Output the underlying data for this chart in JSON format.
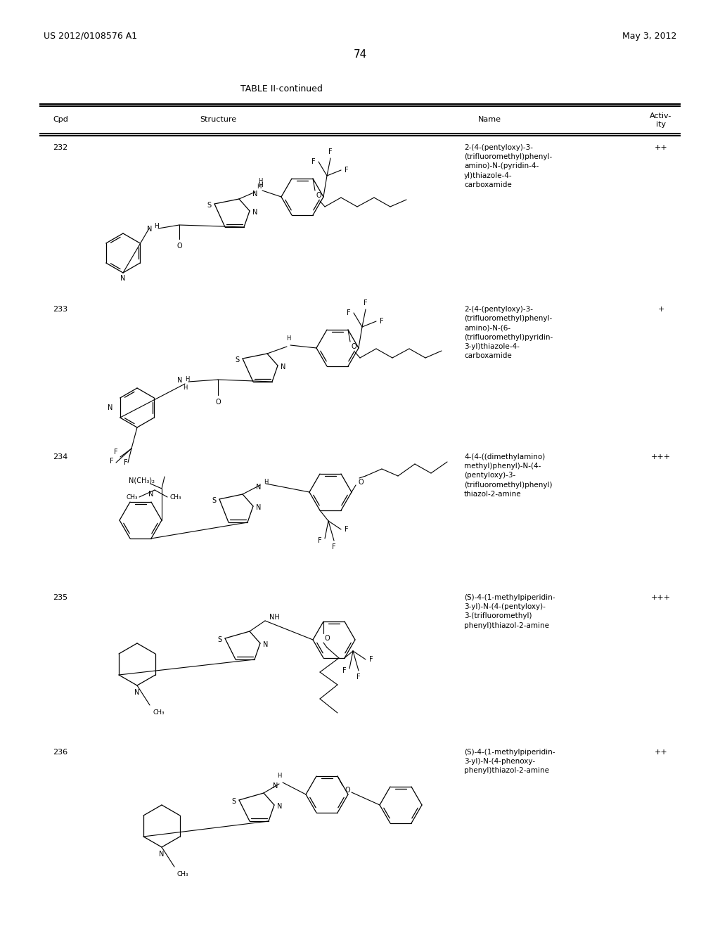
{
  "background_color": "#ffffff",
  "page_number": "74",
  "header_left": "US 2012/0108576 A1",
  "header_right": "May 3, 2012",
  "table_title": "TABLE II-continued",
  "text_color": "#000000",
  "font_size_header": 9,
  "font_size_body": 8,
  "font_size_title": 9,
  "name_texts": [
    "2-(4-(pentyloxy)-3-\n(trifluoromethyl)phenyl-\namino)-N-(pyridin-4-\nyl)thiazole-4-\ncarboxamide",
    "2-(4-(pentyloxy)-3-\n(trifluoromethyl)phenyl-\namino)-N-(6-\n(trifluoromethyl)pyridin-\n3-yl)thiazole-4-\ncarboxamide",
    "4-(4-((dimethylamino)\nmethyl)phenyl)-N-(4-\n(pentyloxy)-3-\n(trifluoromethyl)phenyl)\nthiazol-2-amine",
    "(S)-4-(1-methylpiperidin-\n3-yl)-N-(4-(pentyloxy)-\n3-(trifluoromethyl)\nphenyl)thiazol-2-amine",
    "(S)-4-(1-methylpiperidin-\n3-yl)-N-(4-phenoxy-\nphenyl)thiazol-2-amine"
  ],
  "activities": [
    "++",
    "+",
    "+++",
    "+++",
    "++"
  ],
  "cpds": [
    "232",
    "233",
    "234",
    "235",
    "236"
  ]
}
